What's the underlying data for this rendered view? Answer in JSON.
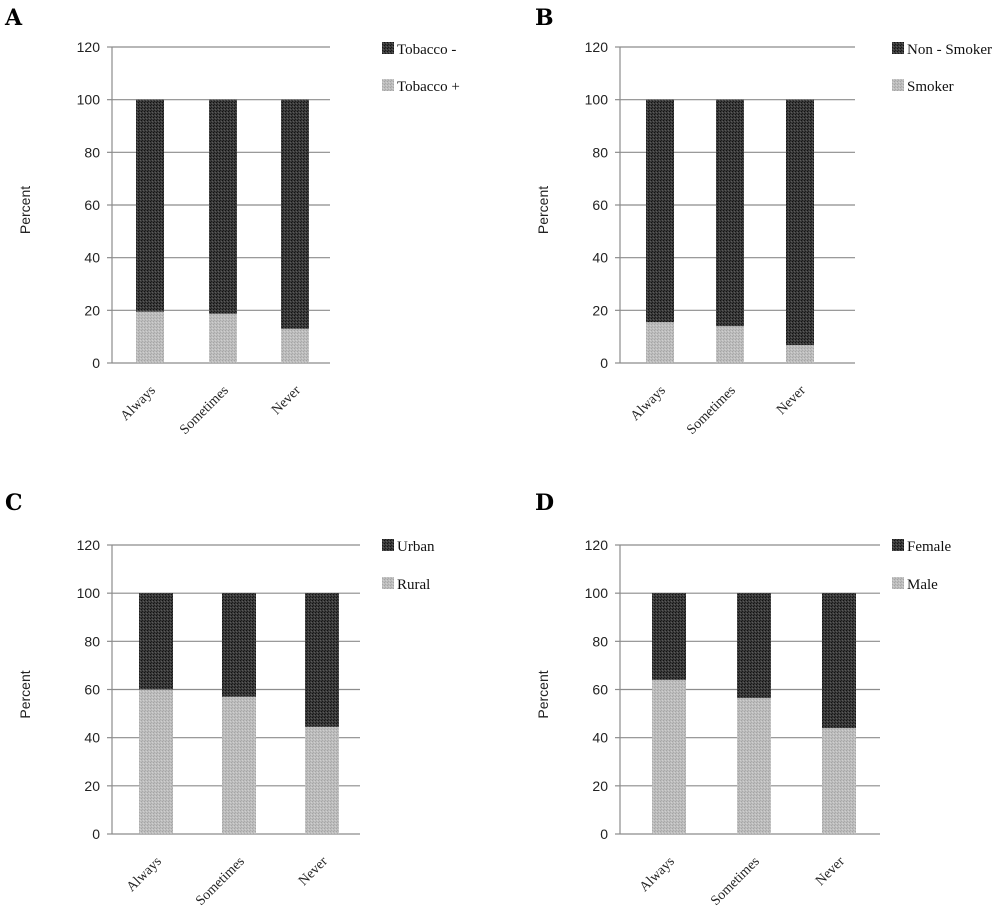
{
  "colors": {
    "top_segment": "#333333",
    "bottom_segment": "#b5b5b5",
    "grid": "#8c8c8c"
  },
  "chart_data": [
    {
      "panel": "A",
      "type": "bar",
      "stacked": true,
      "categories": [
        "Always",
        "Sometimes",
        "Never"
      ],
      "ylabel": "Percent",
      "ylim": [
        0,
        120
      ],
      "yticks": [
        0,
        20,
        40,
        60,
        80,
        100,
        120
      ],
      "grid": true,
      "legend_position": "top-right",
      "series": [
        {
          "name": "Tobacco +",
          "values": [
            19.5,
            18.7,
            13.0
          ]
        },
        {
          "name": "Tobacco -",
          "values": [
            80.5,
            81.3,
            87.0
          ]
        }
      ],
      "legend_order": [
        "Tobacco -",
        "Tobacco +"
      ]
    },
    {
      "panel": "B",
      "type": "bar",
      "stacked": true,
      "categories": [
        "Always",
        "Sometimes",
        "Never"
      ],
      "ylabel": "Percent",
      "ylim": [
        0,
        120
      ],
      "yticks": [
        0,
        20,
        40,
        60,
        80,
        100,
        120
      ],
      "grid": true,
      "legend_position": "top-right",
      "series": [
        {
          "name": "Smoker",
          "values": [
            15.5,
            14.0,
            6.8
          ]
        },
        {
          "name": "Non - Smoker",
          "values": [
            84.5,
            86.0,
            93.2
          ]
        }
      ],
      "legend_order": [
        "Non - Smoker",
        "Smoker"
      ]
    },
    {
      "panel": "C",
      "type": "bar",
      "stacked": true,
      "categories": [
        "Always",
        "Sometimes",
        "Never"
      ],
      "ylabel": "Percent",
      "ylim": [
        0,
        120
      ],
      "yticks": [
        0,
        20,
        40,
        60,
        80,
        100,
        120
      ],
      "grid": true,
      "legend_position": "top-right",
      "series": [
        {
          "name": "Rural",
          "values": [
            60.0,
            57.0,
            44.5
          ]
        },
        {
          "name": "Urban",
          "values": [
            40.0,
            43.0,
            55.5
          ]
        }
      ],
      "legend_order": [
        "Urban",
        "Rural"
      ]
    },
    {
      "panel": "D",
      "type": "bar",
      "stacked": true,
      "categories": [
        "Always",
        "Sometimes",
        "Never"
      ],
      "ylabel": "Percent",
      "ylim": [
        0,
        120
      ],
      "yticks": [
        0,
        20,
        40,
        60,
        80,
        100,
        120
      ],
      "grid": true,
      "legend_position": "top-right",
      "series": [
        {
          "name": "Male",
          "values": [
            64.0,
            56.5,
            44.0
          ]
        },
        {
          "name": "Female",
          "values": [
            36.0,
            43.5,
            56.0
          ]
        }
      ],
      "legend_order": [
        "Female",
        "Male"
      ]
    }
  ]
}
